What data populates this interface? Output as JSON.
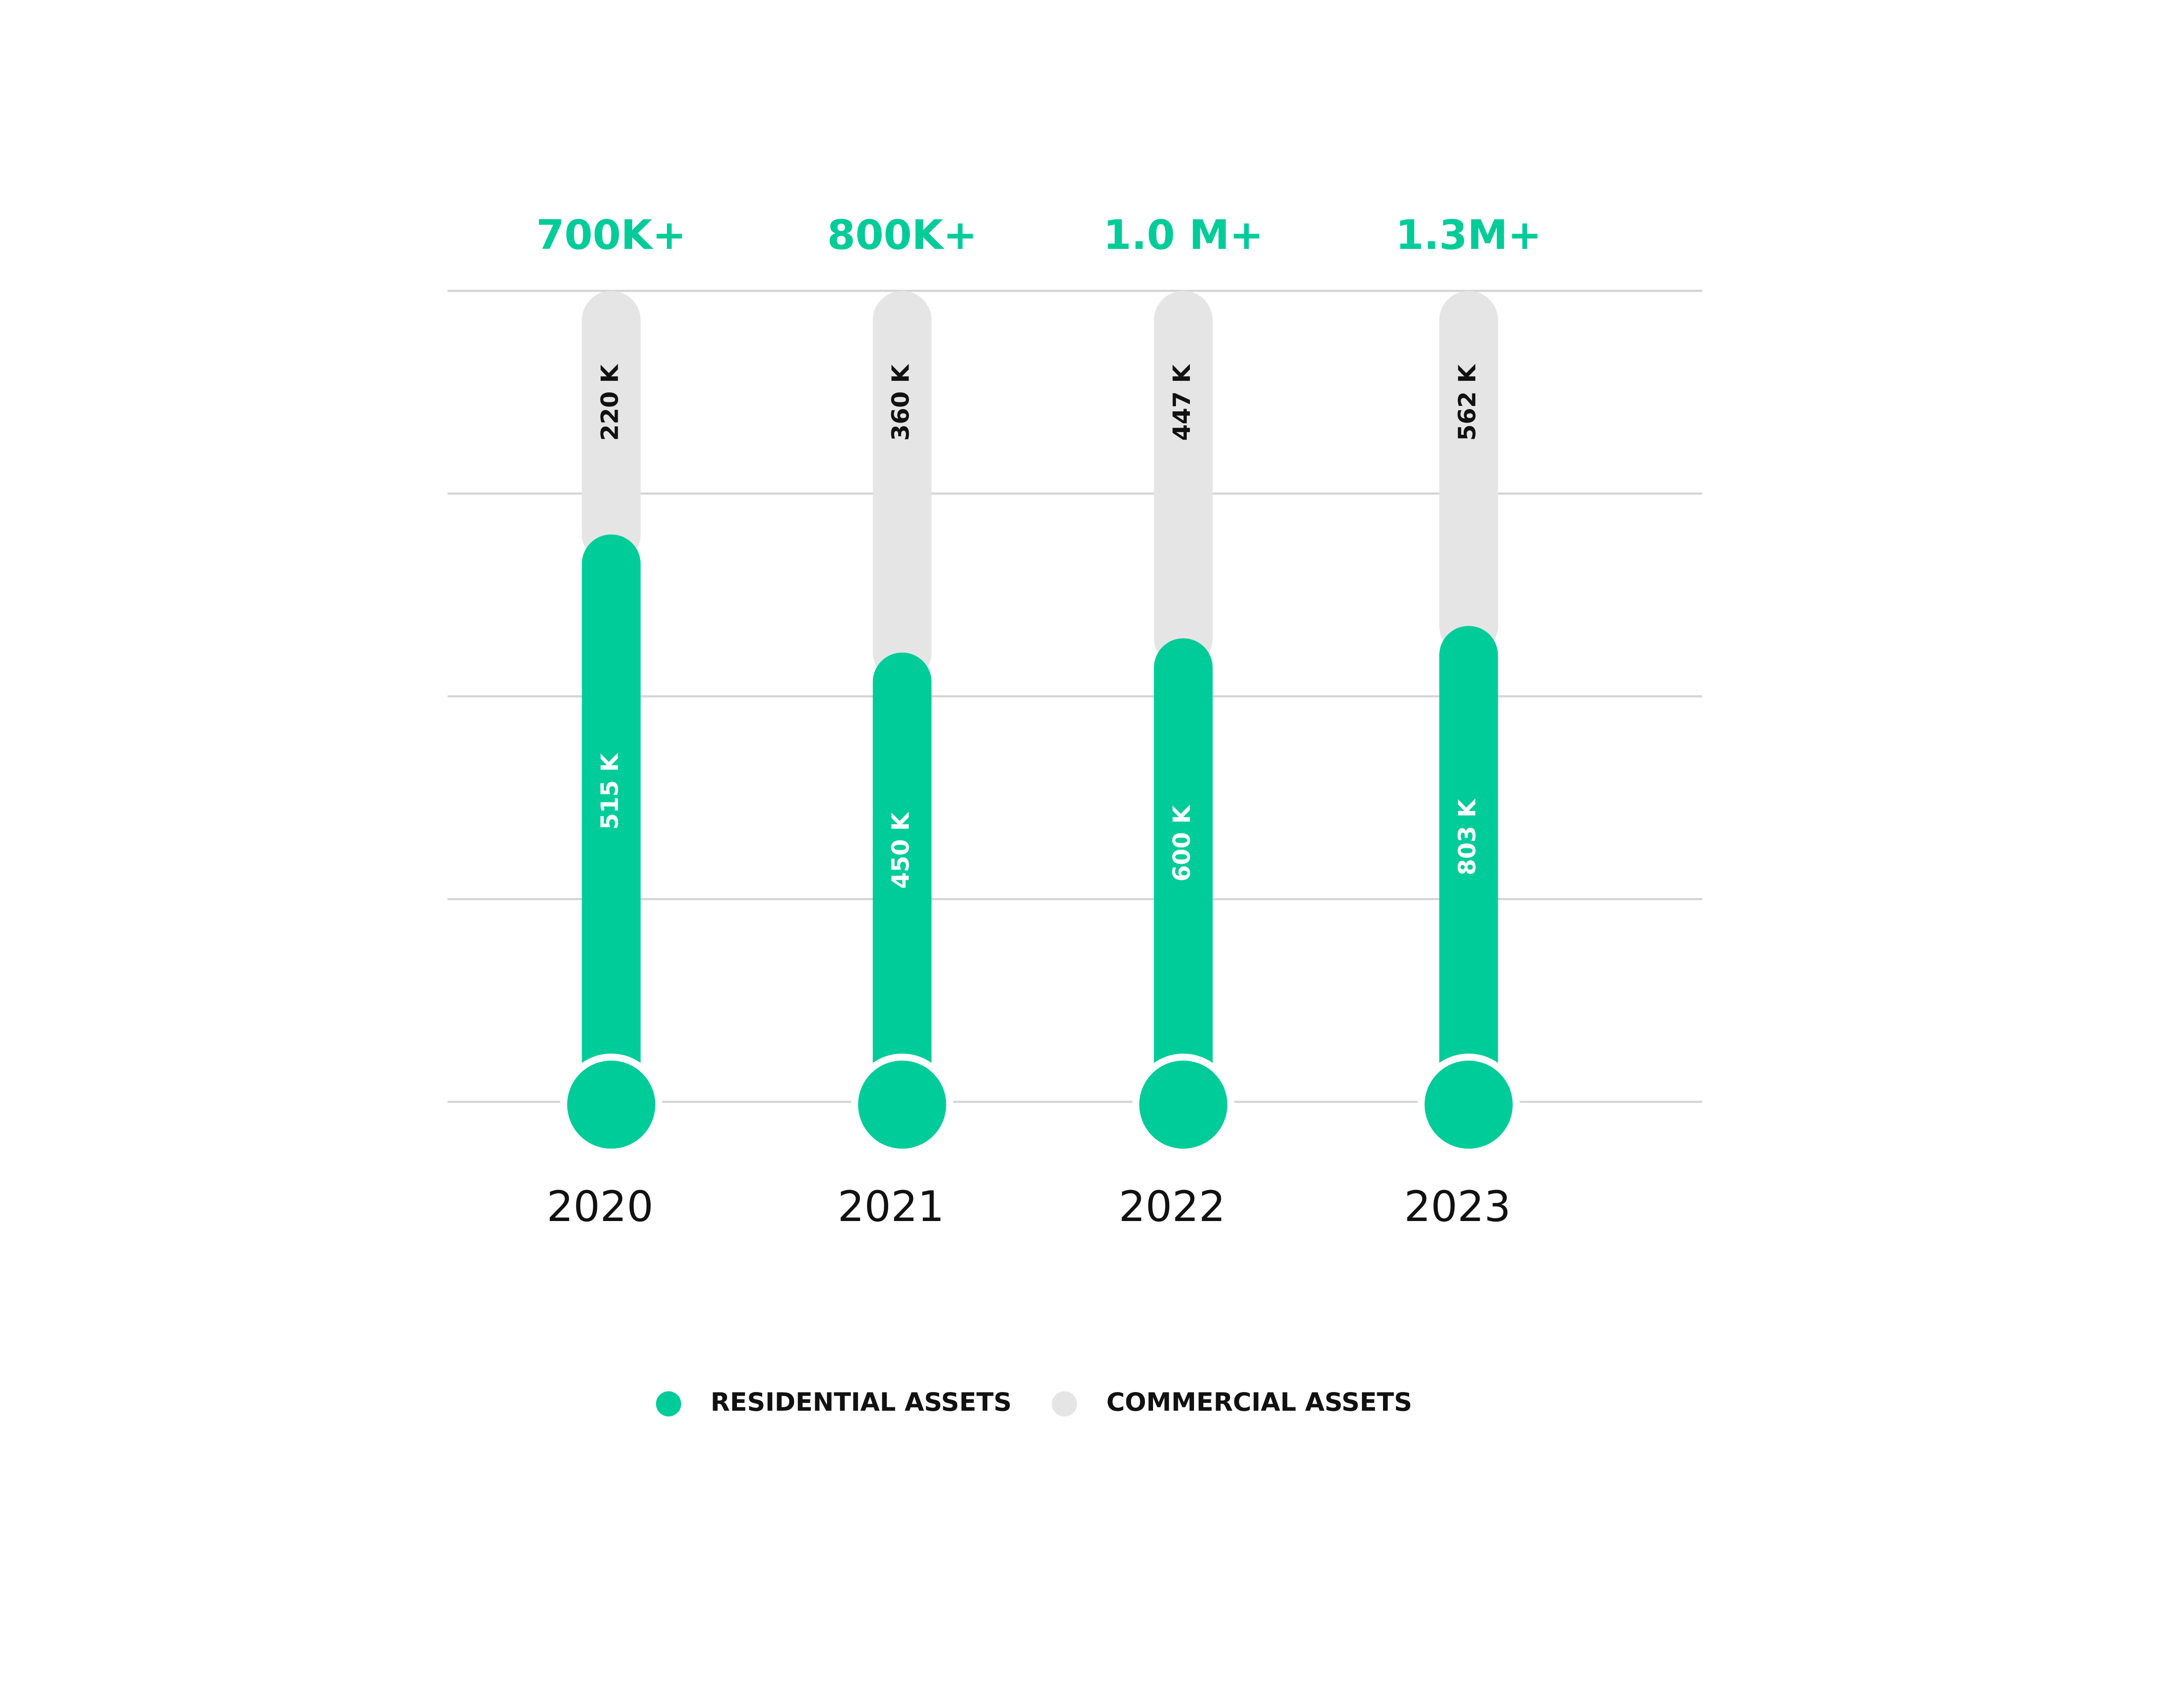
{
  "chart_data": {
    "type": "thermometer",
    "categories": [
      "2020",
      "2021",
      "2022",
      "2023"
    ],
    "total_labels": [
      "700K+",
      "800K+",
      "1.0 M+",
      "1.3M+"
    ],
    "series": [
      {
        "name": "RESIDENTIAL ASSETS",
        "color": "#00cc99",
        "label_color": "#ffffff",
        "values": [
          515,
          450,
          600,
          803
        ],
        "value_labels": [
          "515 K",
          "450 K",
          "600 K",
          "803 K"
        ]
      },
      {
        "name": "COMMERCIAL ASSETS",
        "color": "#e5e5e5",
        "label_color": "#111111",
        "values": [
          220,
          360,
          447,
          562
        ],
        "value_labels": [
          "220 K",
          "360 K",
          "447 K",
          "562 K"
        ]
      }
    ],
    "grid": true
  }
}
